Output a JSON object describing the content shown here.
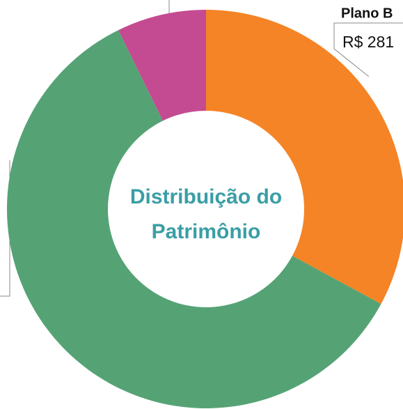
{
  "chart_data": {
    "type": "donut",
    "center_label": [
      "Distribuição do",
      "Patrimônio"
    ],
    "categories": [
      "Plano B",
      null,
      null
    ],
    "values": [
      281,
      511,
      62
    ],
    "value_labels": [
      "R$ 281",
      null,
      null
    ],
    "colors": [
      "#f58426",
      "#55a375",
      "#c44b91"
    ]
  }
}
